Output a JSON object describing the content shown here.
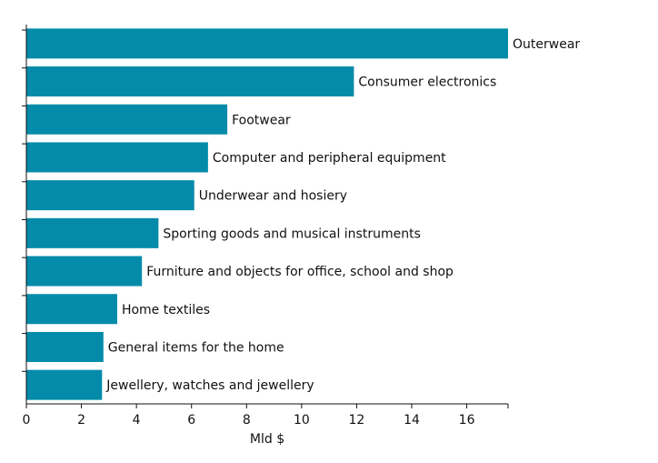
{
  "chart_data": {
    "type": "bar",
    "orientation": "horizontal",
    "categories": [
      "Outerwear",
      "Consumer electronics",
      "Footwear",
      "Computer and peripheral equipment",
      "Underwear and hosiery",
      "Sporting goods and musical instruments",
      "Furniture and objects for office, school and shop",
      "Home textiles",
      "General items for the home",
      "Jewellery, watches and jewellery"
    ],
    "values": [
      17.5,
      11.9,
      7.3,
      6.6,
      6.1,
      4.8,
      4.2,
      3.3,
      2.8,
      2.75
    ],
    "title": "",
    "xlabel": "Mld $",
    "ylabel": "",
    "xlim": [
      0,
      17.5
    ],
    "xticks": [
      "0",
      "2",
      "4",
      "6",
      "8",
      "10",
      "12",
      "14",
      "16"
    ],
    "grid": false,
    "legend": "none",
    "bar_color": "#038BA9"
  }
}
